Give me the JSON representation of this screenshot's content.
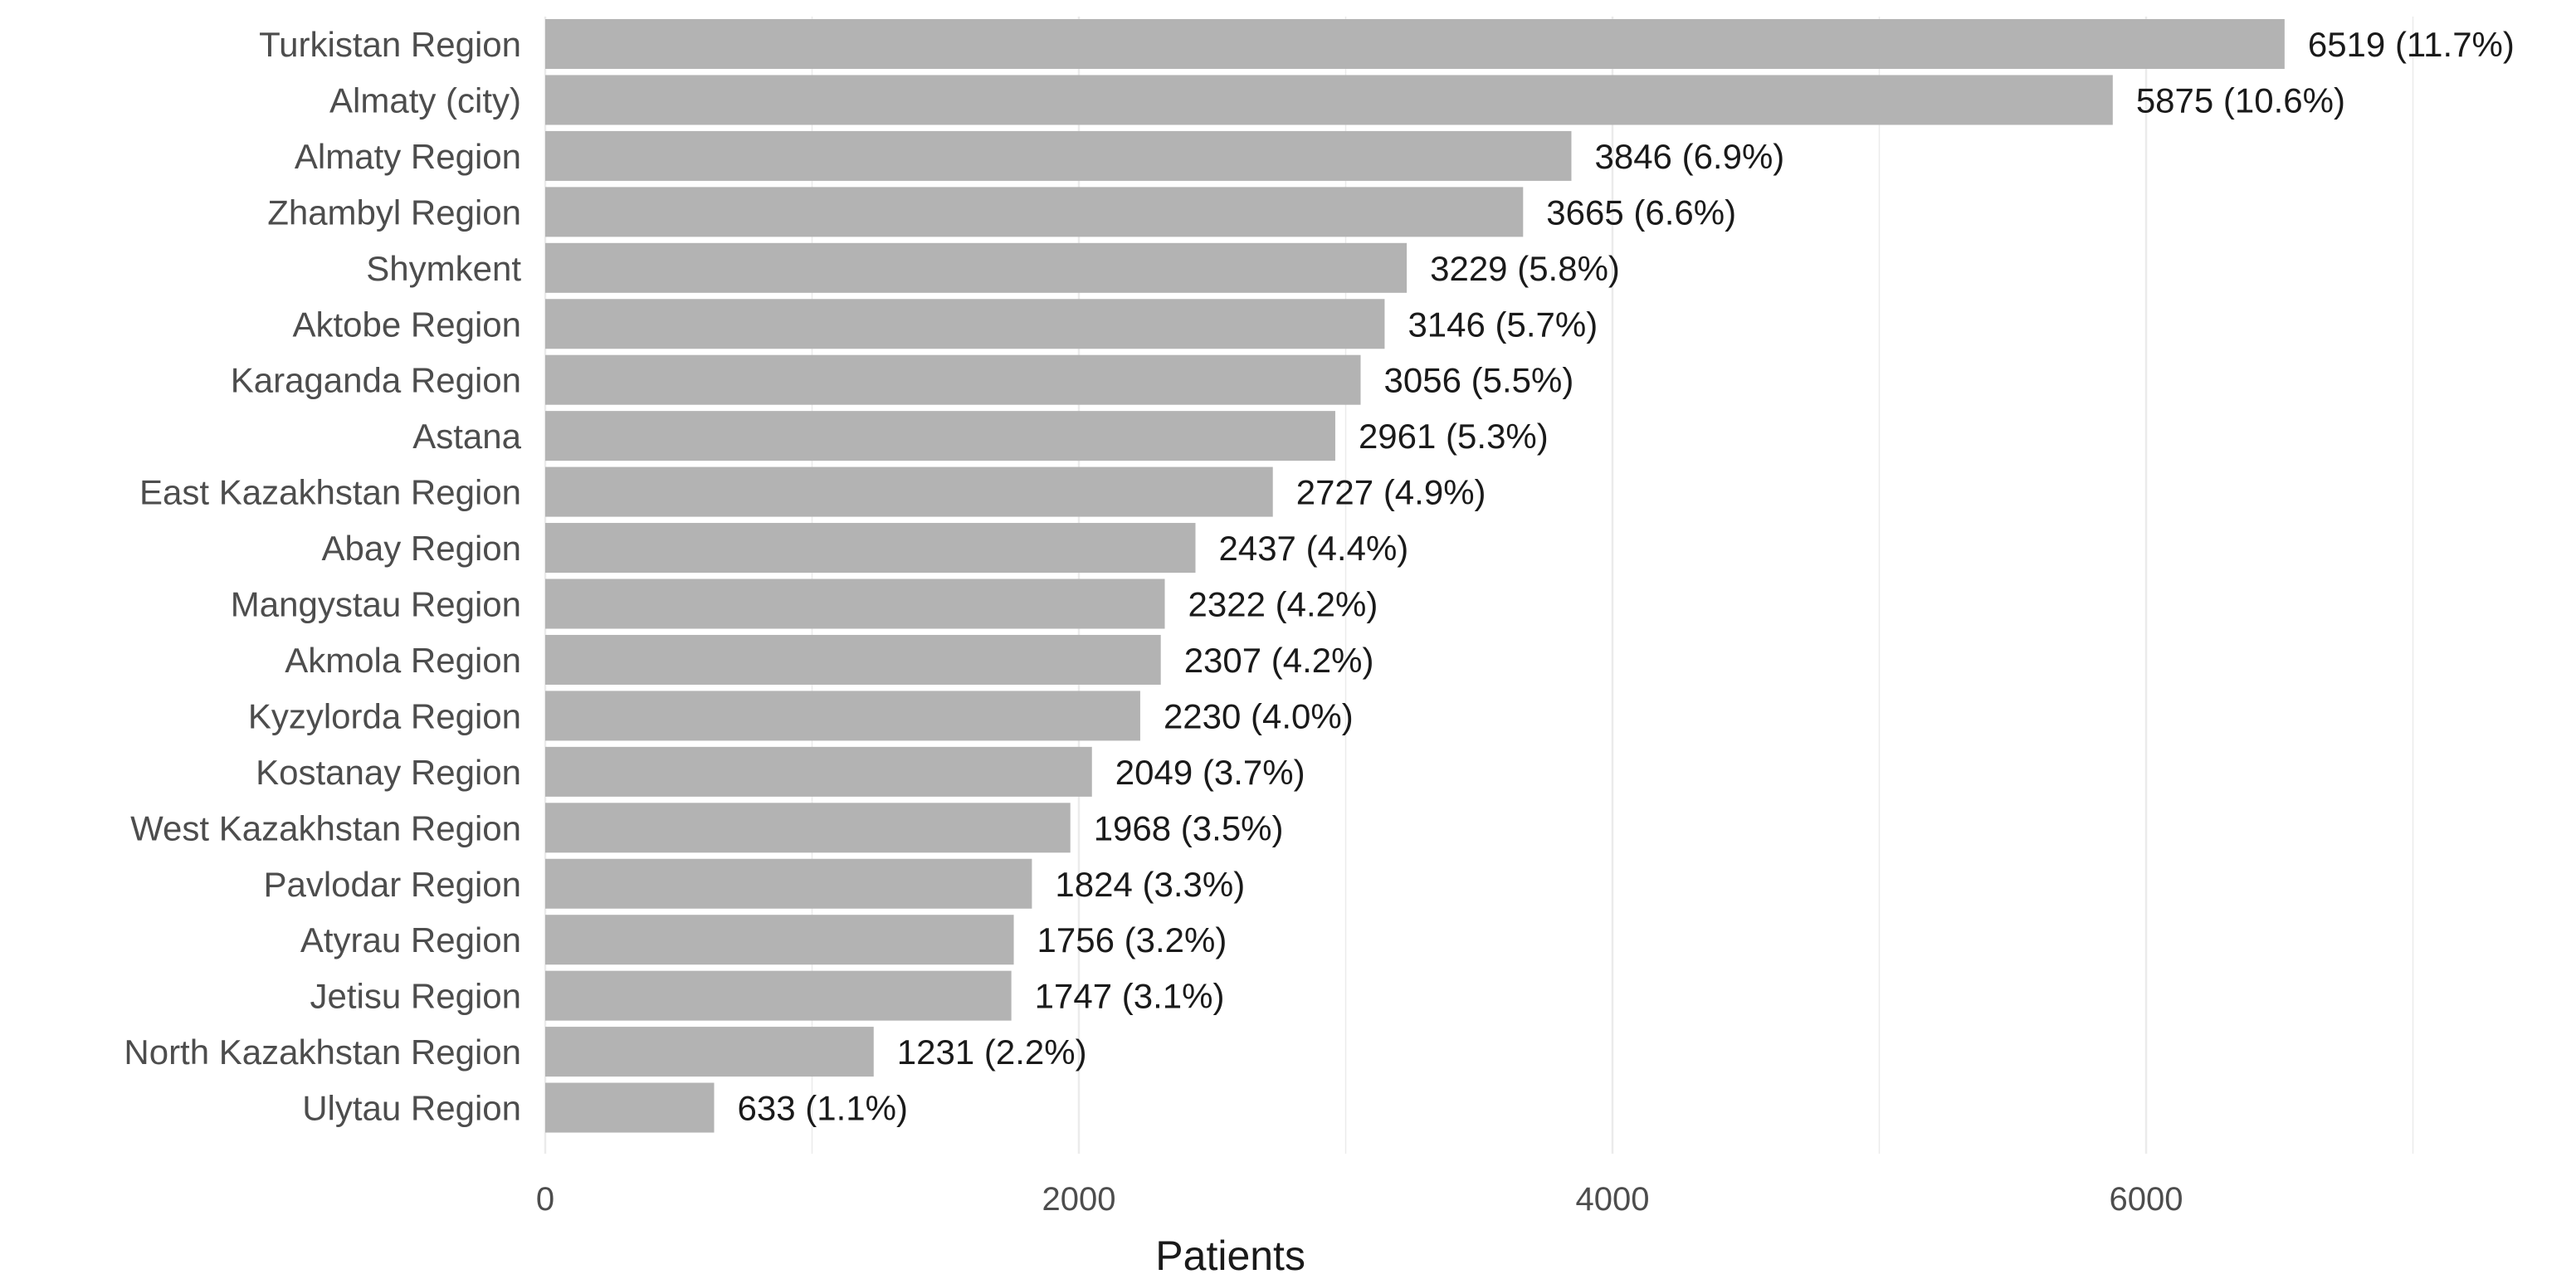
{
  "chart_data": {
    "type": "bar",
    "orientation": "horizontal",
    "title": "",
    "xlabel": "Patients",
    "ylabel": "",
    "xlim": [
      0,
      7500
    ],
    "x_ticks": [
      0,
      2000,
      4000,
      6000
    ],
    "grid": "vertical major gridlines",
    "legend": "none",
    "colors": {
      "bar": "#b3b3b3",
      "grid": "#ebebeb",
      "background": "#ffffff"
    },
    "categories": [
      "Turkistan Region",
      "Almaty (city)",
      "Almaty Region",
      "Zhambyl Region",
      "Shymkent",
      "Aktobe Region",
      "Karaganda Region",
      "Astana",
      "East Kazakhstan Region",
      "Abay Region",
      "Mangystau Region",
      "Akmola Region",
      "Kyzylorda Region",
      "Kostanay Region",
      "West Kazakhstan Region",
      "Pavlodar Region",
      "Atyrau Region",
      "Jetisu Region",
      "North Kazakhstan Region",
      "Ulytau Region"
    ],
    "values": [
      6519,
      5875,
      3846,
      3665,
      3229,
      3146,
      3056,
      2961,
      2727,
      2437,
      2322,
      2307,
      2230,
      2049,
      1968,
      1824,
      1756,
      1747,
      1231,
      633
    ],
    "data_labels": [
      "6519 (11.7%)",
      "5875 (10.6%)",
      "3846 (6.9%)",
      "3665 (6.6%)",
      "3229 (5.8%)",
      "3146 (5.7%)",
      "3056 (5.5%)",
      "2961 (5.3%)",
      "2727 (4.9%)",
      "2437 (4.4%)",
      "2322 (4.2%)",
      "2307 (4.2%)",
      "2230 (4.0%)",
      "2049 (3.7%)",
      "1968 (3.5%)",
      "1824 (3.3%)",
      "1756 (3.2%)",
      "1747 (3.1%)",
      "1231 (2.2%)",
      "633 (1.1%)"
    ]
  }
}
